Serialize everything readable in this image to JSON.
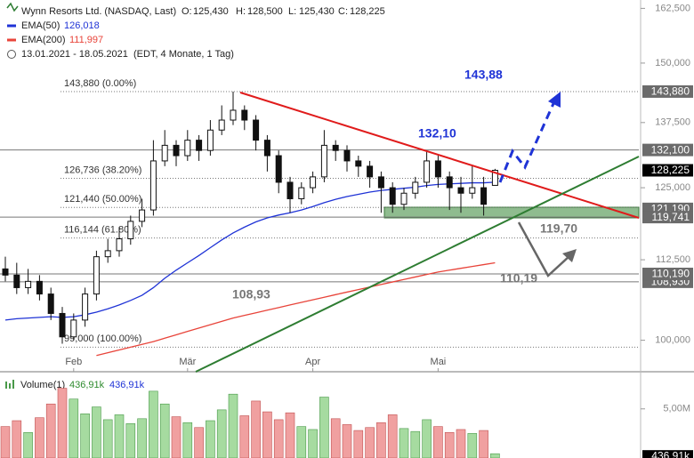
{
  "chart_data": {
    "type": "candlestick",
    "title": "Wynn Resorts Ltd. (NASDAQ, Last)",
    "quote": [
      {
        "label": "O:",
        "value": "125,430"
      },
      {
        "label": "H:",
        "value": "128,500"
      },
      {
        "label": "L:",
        "value": "125,430"
      },
      {
        "label": "C:",
        "value": "128,225"
      }
    ],
    "period": "13.01.2021 - 18.05.2021",
    "period_note": "(EDT, 4 Monate, 1 Tag)",
    "log_scale": true,
    "grid": false,
    "ylim": [
      95.5,
      164.5
    ],
    "yticks": [
      {
        "value": 100,
        "label": "100,000"
      },
      {
        "value": 112.5,
        "label": "112,500"
      },
      {
        "value": 125,
        "label": "125,000"
      },
      {
        "value": 137.5,
        "label": "137,500"
      },
      {
        "value": 150,
        "label": "150,000"
      },
      {
        "value": 162.5,
        "label": "162,500"
      }
    ],
    "categories": [
      null,
      null,
      null,
      null,
      null,
      null,
      null,
      null,
      null,
      null,
      null,
      null,
      null,
      null,
      null,
      null,
      null,
      null,
      null,
      null,
      null,
      null,
      null,
      null,
      null,
      null,
      null,
      null,
      null,
      null,
      null,
      null,
      null,
      null,
      null,
      null,
      null,
      null,
      null,
      null,
      null,
      null,
      null,
      null
    ],
    "xticks": [
      {
        "value": 6,
        "label": "Feb"
      },
      {
        "value": 16,
        "label": "Mär"
      },
      {
        "value": 27,
        "label": "Apr"
      },
      {
        "value": 38,
        "label": "Mai"
      }
    ],
    "up_color": "#ffffff",
    "down_color": "#111111",
    "open": [
      111,
      110,
      108,
      109,
      107,
      104,
      100.5,
      103,
      107,
      113,
      114,
      116,
      119,
      121,
      130,
      133,
      131,
      134,
      132,
      136,
      138,
      140,
      138,
      134,
      131,
      126,
      123,
      125,
      127,
      133,
      132,
      130,
      129,
      127,
      125,
      122,
      124,
      126,
      130,
      127,
      125,
      124,
      125,
      125.43
    ],
    "high": [
      113,
      112,
      111,
      110,
      108,
      105,
      104,
      108,
      114,
      116,
      118,
      120,
      123,
      134,
      136,
      134,
      136,
      135,
      138,
      141,
      143.88,
      141,
      139,
      135,
      132,
      127,
      126,
      128,
      136,
      134,
      133,
      131,
      130,
      128,
      126,
      125,
      127,
      132,
      131,
      128,
      127,
      129,
      127,
      128.5
    ],
    "low": [
      109,
      107,
      107,
      106,
      103,
      99.5,
      100,
      102,
      106,
      112,
      113,
      115,
      118,
      120,
      129,
      129,
      130,
      130,
      131,
      135,
      137,
      136,
      132,
      128,
      124,
      120.5,
      122,
      124,
      126,
      130,
      128,
      127,
      125,
      120.5,
      120.5,
      121,
      123,
      125,
      125,
      121,
      120.5,
      123,
      120,
      125.43
    ],
    "close": [
      110,
      108,
      109,
      107,
      104,
      100.5,
      103,
      107,
      113,
      114,
      116,
      119,
      121,
      130,
      133,
      131,
      134,
      132,
      136,
      138,
      140,
      138,
      134,
      131,
      126,
      123,
      125,
      127,
      133,
      132,
      130,
      129,
      127,
      125,
      122,
      124,
      126,
      130,
      127,
      125,
      124,
      125,
      122,
      128.225
    ],
    "series": [
      {
        "name": "EMA(50)",
        "color": "#1f33d6",
        "legend_value": "126,018",
        "values": [
          103,
          103.2,
          103.3,
          103.4,
          103.5,
          103.4,
          103.5,
          103.8,
          104.2,
          104.7,
          105.3,
          106.0,
          106.8,
          108.0,
          109.5,
          110.8,
          112.0,
          113.2,
          114.5,
          115.8,
          117.0,
          118.0,
          118.9,
          119.6,
          120.1,
          120.5,
          121.0,
          121.6,
          122.3,
          122.9,
          123.4,
          123.8,
          124.2,
          124.5,
          124.7,
          124.9,
          125.1,
          125.4,
          125.6,
          125.7,
          125.8,
          125.9,
          125.9,
          126.018
        ]
      },
      {
        "name": "EMA(200)",
        "color": "#e8443a",
        "legend_value": "111,997",
        "values": [
          null,
          null,
          null,
          null,
          null,
          null,
          null,
          null,
          97.8,
          98.2,
          98.6,
          99.0,
          99.4,
          99.8,
          100.3,
          100.8,
          101.3,
          101.8,
          102.3,
          102.8,
          103.3,
          103.7,
          104.1,
          104.5,
          104.9,
          105.3,
          105.7,
          106.1,
          106.5,
          106.9,
          107.3,
          107.7,
          108.1,
          108.5,
          108.9,
          109.3,
          109.7,
          110.1,
          110.5,
          110.8,
          111.1,
          111.4,
          111.7,
          111.997
        ]
      }
    ],
    "fib_levels": [
      {
        "value": 143.88,
        "label": "143,880 (0.00%)"
      },
      {
        "value": 126.736,
        "label": "126,736 (38.20%)"
      },
      {
        "value": 121.44,
        "label": "121,440 (50.00%)"
      },
      {
        "value": 116.144,
        "label": "116,144 (61.80%)"
      },
      {
        "value": 99.0,
        "label": "99,000 (100.00%)"
      }
    ],
    "price_tags": [
      {
        "value": 143.88,
        "label": "143,880",
        "color": "#6b6b6b",
        "line": false
      },
      {
        "value": 132.1,
        "label": "132,100",
        "color": "#6b6b6b",
        "line": true
      },
      {
        "value": 121.19,
        "label": "121,190",
        "color": "#6b6b6b",
        "line": false
      },
      {
        "value": 119.741,
        "label": "119,741",
        "color": "#6b6b6b",
        "line": true
      },
      {
        "value": 128.225,
        "label": "128,225",
        "color": "#000000",
        "line": false
      },
      {
        "value": 108.93,
        "label": "108,930",
        "color": "#6b6b6b",
        "line": true
      },
      {
        "value": 110.19,
        "label": "110,190",
        "color": "#6b6b6b",
        "line": true
      }
    ],
    "annotations": [
      "143,88",
      "132,10",
      "119,70",
      "110,19",
      "108,93"
    ],
    "volume": {
      "name": "Volume(1)",
      "value_label": "436,91k",
      "up_color": "#a6dba0",
      "down_color": "#f0a0a0",
      "ylim": [
        0,
        8.6
      ],
      "yticks": [
        {
          "value": 5,
          "label": "5,00M"
        }
      ],
      "values": [
        3.2,
        3.8,
        2.6,
        4.1,
        5.5,
        7.1,
        6.0,
        4.5,
        5.2,
        3.9,
        4.4,
        3.5,
        4.0,
        6.8,
        5.5,
        4.2,
        3.6,
        3.1,
        3.8,
        4.9,
        6.5,
        4.3,
        5.8,
        4.7,
        3.9,
        4.6,
        3.2,
        2.9,
        6.2,
        4.0,
        3.4,
        2.8,
        3.1,
        3.6,
        4.4,
        3.0,
        2.7,
        3.9,
        3.2,
        2.6,
        2.9,
        2.5,
        2.8,
        0.43691
      ]
    }
  }
}
